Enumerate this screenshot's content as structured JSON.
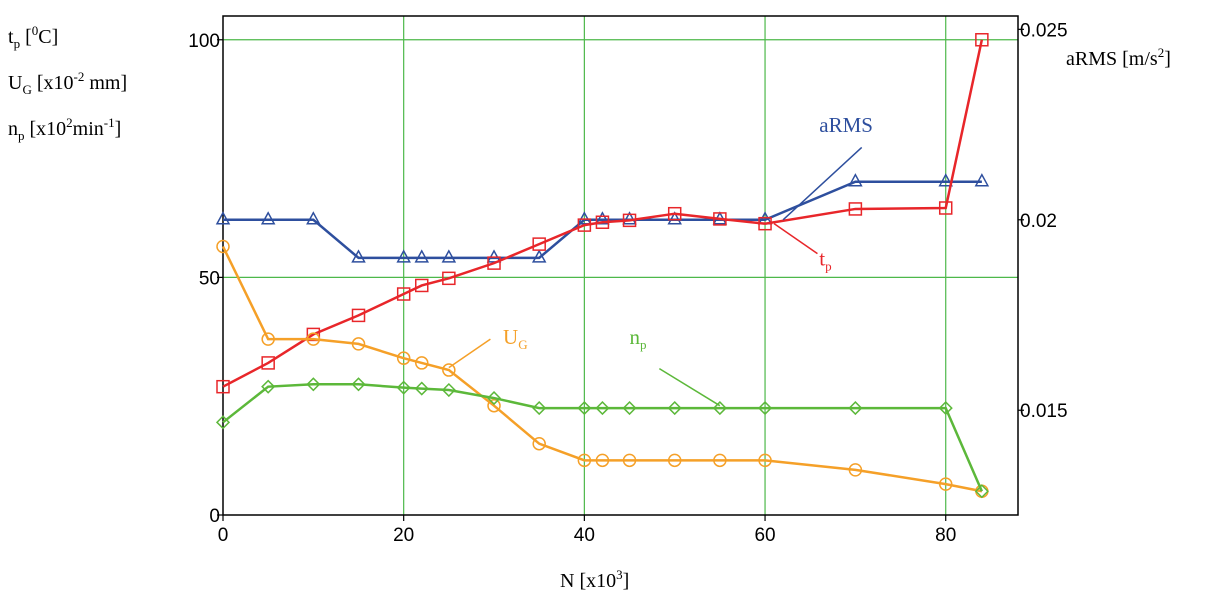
{
  "chart_data": {
    "type": "line",
    "x_axis": {
      "label_main": "N [x10",
      "label_sup": "3",
      "label_end": "]",
      "range": [
        0,
        88
      ],
      "ticks": [
        0,
        20,
        40,
        60,
        80
      ],
      "tick_labels": [
        "0",
        "20",
        "40",
        "60",
        "80"
      ]
    },
    "y_left": {
      "range": [
        0,
        105
      ],
      "ticks": [
        0,
        50,
        100
      ],
      "tick_labels": [
        "0",
        "50",
        "100"
      ],
      "labels": [
        {
          "main": "t",
          "sub": "p",
          "mid": " [",
          "sup": "0",
          "end": "C]"
        },
        {
          "main": "U",
          "sub": "G",
          "mid": " [x10",
          "sup": "-2",
          "end": " mm]"
        },
        {
          "main": "n",
          "sub": "p",
          "mid": " [x10",
          "sup": "2",
          "end": "min",
          "sup2": "-1",
          "end2": "]"
        }
      ]
    },
    "y_right": {
      "range": [
        0.01225,
        0.02535
      ],
      "ticks": [
        0.015,
        0.02,
        0.025
      ],
      "tick_labels": [
        "0.015",
        "0.02",
        "0.025"
      ],
      "label_main": "aRMS [m/s",
      "label_sup": "2",
      "label_end": "]"
    },
    "grid": true,
    "series": [
      {
        "name": "aRMS",
        "axis": "right",
        "color": "#2e4f9e",
        "marker": "triangle",
        "x": [
          0,
          5,
          10,
          15,
          20,
          22,
          25,
          30,
          35,
          40,
          42,
          45,
          50,
          55,
          60,
          70,
          80,
          84
        ],
        "y": [
          0.02,
          0.02,
          0.02,
          0.019,
          0.019,
          0.019,
          0.019,
          0.019,
          0.019,
          0.02,
          0.02,
          0.02,
          0.02,
          0.02,
          0.02,
          0.021,
          0.021,
          0.021
        ]
      },
      {
        "name": "t",
        "name_sub": "p",
        "axis": "left",
        "color": "#e8262a",
        "marker": "square",
        "x": [
          0,
          5,
          10,
          15,
          20,
          22,
          25,
          30,
          35,
          40,
          42,
          45,
          50,
          55,
          60,
          70,
          80,
          84
        ],
        "y": [
          27,
          32,
          38,
          42,
          46.5,
          48.3,
          49.8,
          53,
          57,
          61,
          61.6,
          62,
          63.4,
          62.3,
          61.3,
          64.4,
          64.6,
          100
        ]
      },
      {
        "name": "U",
        "name_sub": "G",
        "axis": "left",
        "color": "#f5a028",
        "marker": "circle",
        "x": [
          0,
          5,
          10,
          15,
          20,
          22,
          25,
          30,
          35,
          40,
          42,
          45,
          50,
          55,
          60,
          70,
          80,
          84
        ],
        "y": [
          56.5,
          37,
          37,
          36,
          33,
          32,
          30.5,
          23,
          15,
          11.5,
          11.5,
          11.5,
          11.5,
          11.5,
          11.5,
          9.5,
          6.5,
          5
        ]
      },
      {
        "name": "n",
        "name_sub": "p",
        "axis": "left",
        "color": "#5cb83a",
        "marker": "diamond",
        "x": [
          0,
          5,
          10,
          15,
          20,
          22,
          25,
          30,
          35,
          40,
          42,
          45,
          50,
          55,
          60,
          70,
          80,
          84
        ],
        "y": [
          19.5,
          27,
          27.5,
          27.5,
          26.8,
          26.6,
          26.3,
          24.6,
          22.5,
          22.5,
          22.5,
          22.5,
          22.5,
          22.5,
          22.5,
          22.5,
          22.5,
          5
        ]
      }
    ],
    "annotations": [
      {
        "series": "aRMS",
        "text": "aRMS",
        "text_x": 66,
        "text_y_right": 0.0223,
        "leader_from": [
          70.7,
          0.0219
        ],
        "leader_to": [
          62,
          0.02
        ]
      },
      {
        "series": "t",
        "text": "t",
        "sub": "p",
        "text_x": 66,
        "text_y_left": 52.5,
        "leader_from": [
          65.8,
          55
        ],
        "leader_to": [
          61,
          61.3
        ]
      },
      {
        "series": "U",
        "text": "U",
        "sub": "G",
        "text_x": 31,
        "text_y_left": 36,
        "leader_from": [
          29.6,
          37
        ],
        "leader_to": [
          25,
          31
        ]
      },
      {
        "series": "n",
        "text": "n",
        "sub": "p",
        "text_x": 45,
        "text_y_left": 36,
        "leader_from": [
          48.3,
          30.8
        ],
        "leader_to": [
          55,
          23
        ]
      }
    ]
  }
}
